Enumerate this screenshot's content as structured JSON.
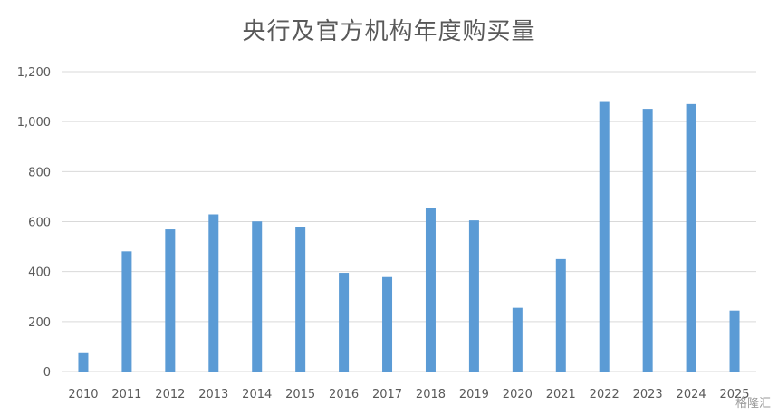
{
  "chart_data": {
    "type": "bar",
    "title": "央行及官方机构年度购买量",
    "xlabel": "",
    "ylabel": "",
    "categories": [
      "2010",
      "2011",
      "2012",
      "2013",
      "2014",
      "2015",
      "2016",
      "2017",
      "2018",
      "2019",
      "2020",
      "2021",
      "2022",
      "2023",
      "2024",
      "2025"
    ],
    "values": [
      77,
      481,
      569,
      629,
      601,
      580,
      395,
      378,
      656,
      605,
      255,
      450,
      1082,
      1051,
      1070,
      244
    ],
    "ylim": [
      0,
      1200
    ],
    "yticks": [
      "0",
      "200",
      "400",
      "600",
      "800",
      "1,000",
      "1,200"
    ],
    "grid": true,
    "legend": "none",
    "bar_color": "#5b9bd5"
  },
  "watermark": "格隆汇"
}
